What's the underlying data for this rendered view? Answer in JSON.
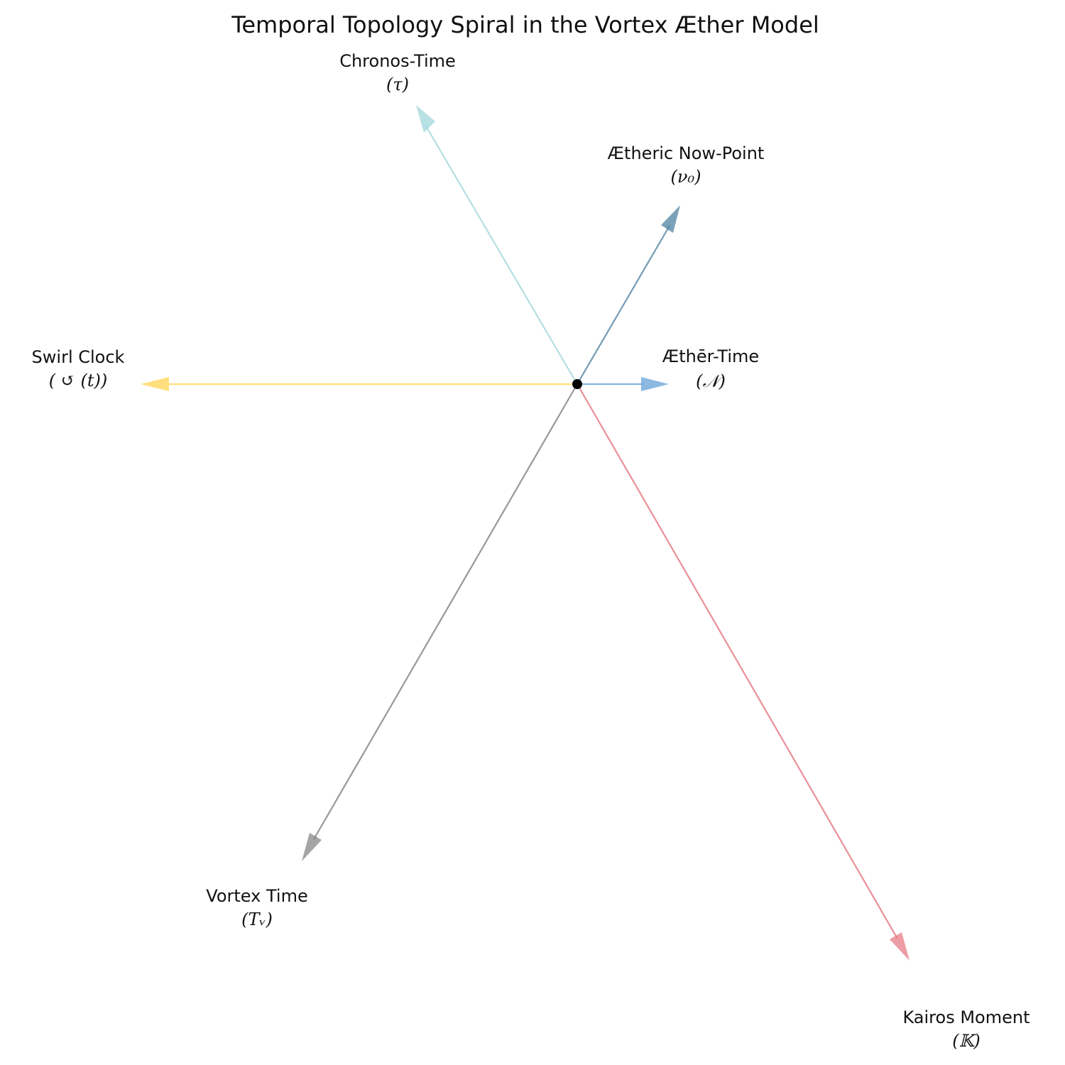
{
  "title": "Temporal Topology Spiral in the Vortex Æther Model",
  "origin_marker_color": "#000000",
  "axes": [
    {
      "id": "chronos",
      "name": "Chronos-Time",
      "symbol": "τ",
      "symbol_display": "(τ)",
      "color": "#a8dadc"
    },
    {
      "id": "now-point",
      "name": "Ætheric Now-Point",
      "symbol": "ν₀",
      "symbol_display": "(ν₀)",
      "color": "#457b9d"
    },
    {
      "id": "aether-time",
      "name": "Æthēr-Time",
      "symbol": "𝒩",
      "symbol_display": "(𝒩)",
      "color": "#5b9bd5"
    },
    {
      "id": "swirl-clock",
      "name": "Swirl Clock",
      "symbol": "↺(t)",
      "symbol_display": "( ↺ (t))",
      "color": "#ffd966"
    },
    {
      "id": "vortex-time",
      "name": "Vortex Time",
      "symbol": "Tᵥ",
      "symbol_display": "(Tᵥ)",
      "color": "#7f7f7f"
    },
    {
      "id": "kairos",
      "name": "Kairos Moment",
      "symbol": "𝕂",
      "symbol_display": "(𝕂)",
      "color": "#e5737f"
    }
  ]
}
